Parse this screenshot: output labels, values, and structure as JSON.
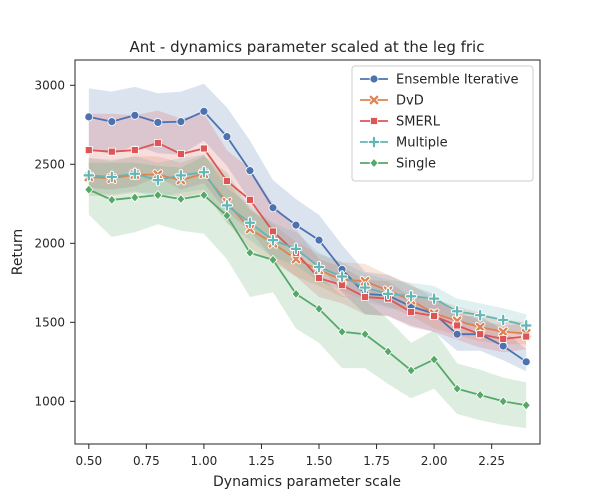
{
  "chart_data": {
    "type": "line",
    "title": "Ant - dynamics parameter scaled at the leg fric",
    "xlabel": "Dynamics parameter scale",
    "ylabel": "Return",
    "xlim": [
      0.44,
      2.46
    ],
    "ylim": [
      730,
      3160
    ],
    "xticks": [
      0.5,
      0.75,
      1.0,
      1.25,
      1.5,
      1.75,
      2.0,
      2.25
    ],
    "xtick_labels": [
      "0.50",
      "0.75",
      "1.00",
      "1.25",
      "1.50",
      "1.75",
      "2.00",
      "2.25"
    ],
    "yticks": [
      1000,
      1500,
      2000,
      2500,
      3000
    ],
    "ytick_labels": [
      "1000",
      "1500",
      "2000",
      "2500",
      "3000"
    ],
    "grid": false,
    "legend_position": "top-right",
    "x": [
      0.5,
      0.6,
      0.7,
      0.8,
      0.9,
      1.0,
      1.1,
      1.2,
      1.3,
      1.4,
      1.5,
      1.6,
      1.7,
      1.8,
      1.9,
      2.0,
      2.1,
      2.2,
      2.3,
      2.4
    ],
    "series": [
      {
        "name": "Ensemble Iterative",
        "color": "#4c72b0",
        "marker": "circle",
        "values": [
          2800,
          2770,
          2810,
          2765,
          2770,
          2835,
          2675,
          2460,
          2225,
          2115,
          2020,
          1835,
          1680,
          1670,
          1600,
          1555,
          1425,
          1425,
          1350,
          1250
        ],
        "lower": [
          2600,
          2560,
          2620,
          2570,
          2560,
          2650,
          2490,
          2270,
          2060,
          1950,
          1860,
          1690,
          1550,
          1540,
          1480,
          1440,
          1320,
          1320,
          1260,
          1190
        ],
        "upper": [
          2980,
          2960,
          2990,
          2950,
          2960,
          3010,
          2860,
          2650,
          2400,
          2280,
          2180,
          1990,
          1820,
          1800,
          1730,
          1680,
          1540,
          1540,
          1450,
          1330
        ]
      },
      {
        "name": "DvD",
        "color": "#dd8452",
        "marker": "x",
        "values": [
          2420,
          2410,
          2435,
          2435,
          2400,
          2440,
          2260,
          2090,
          2000,
          1900,
          1830,
          1770,
          1760,
          1700,
          1640,
          1555,
          1510,
          1470,
          1440,
          1430
        ],
        "lower": [
          2300,
          2300,
          2320,
          2320,
          2290,
          2320,
          2130,
          1970,
          1880,
          1790,
          1730,
          1660,
          1650,
          1600,
          1540,
          1460,
          1420,
          1380,
          1360,
          1360
        ],
        "upper": [
          2540,
          2520,
          2550,
          2550,
          2510,
          2560,
          2390,
          2210,
          2120,
          2010,
          1930,
          1880,
          1870,
          1800,
          1740,
          1650,
          1600,
          1560,
          1520,
          1500
        ]
      },
      {
        "name": "SMERL",
        "color": "#dd5555",
        "marker": "square",
        "values": [
          2590,
          2580,
          2590,
          2635,
          2565,
          2600,
          2395,
          2275,
          2075,
          1940,
          1780,
          1735,
          1660,
          1650,
          1565,
          1540,
          1480,
          1425,
          1395,
          1410
        ],
        "lower": [
          2350,
          2340,
          2360,
          2420,
          2340,
          2380,
          2200,
          2080,
          1900,
          1790,
          1660,
          1620,
          1550,
          1540,
          1470,
          1440,
          1390,
          1340,
          1310,
          1330
        ],
        "upper": [
          2820,
          2820,
          2810,
          2840,
          2790,
          2820,
          2590,
          2470,
          2250,
          2090,
          1900,
          1850,
          1770,
          1760,
          1660,
          1640,
          1570,
          1510,
          1480,
          1490
        ]
      },
      {
        "name": "Multiple",
        "color": "#64b5b5",
        "marker": "plus",
        "values": [
          2430,
          2420,
          2440,
          2400,
          2430,
          2450,
          2240,
          2130,
          2020,
          1965,
          1850,
          1790,
          1720,
          1680,
          1665,
          1650,
          1570,
          1545,
          1515,
          1480
        ],
        "lower": [
          2320,
          2310,
          2330,
          2290,
          2320,
          2340,
          2130,
          2020,
          1910,
          1860,
          1760,
          1700,
          1630,
          1590,
          1580,
          1570,
          1490,
          1470,
          1440,
          1410
        ],
        "upper": [
          2540,
          2530,
          2550,
          2510,
          2540,
          2560,
          2350,
          2240,
          2130,
          2070,
          1940,
          1880,
          1810,
          1770,
          1750,
          1730,
          1650,
          1620,
          1590,
          1550
        ]
      },
      {
        "name": "Single",
        "color": "#55a868",
        "marker": "diamond",
        "values": [
          2340,
          2275,
          2290,
          2305,
          2280,
          2305,
          2175,
          1940,
          1895,
          1680,
          1585,
          1440,
          1425,
          1315,
          1195,
          1265,
          1080,
          1040,
          1000,
          975
        ],
        "lower": [
          2180,
          2040,
          2070,
          2120,
          2080,
          2060,
          1900,
          1660,
          1690,
          1460,
          1370,
          1210,
          1210,
          1110,
          1020,
          1080,
          920,
          880,
          850,
          830
        ],
        "upper": [
          2510,
          2510,
          2510,
          2490,
          2480,
          2550,
          2450,
          2220,
          2100,
          1900,
          1800,
          1670,
          1640,
          1520,
          1370,
          1450,
          1240,
          1200,
          1150,
          1120
        ]
      }
    ]
  }
}
